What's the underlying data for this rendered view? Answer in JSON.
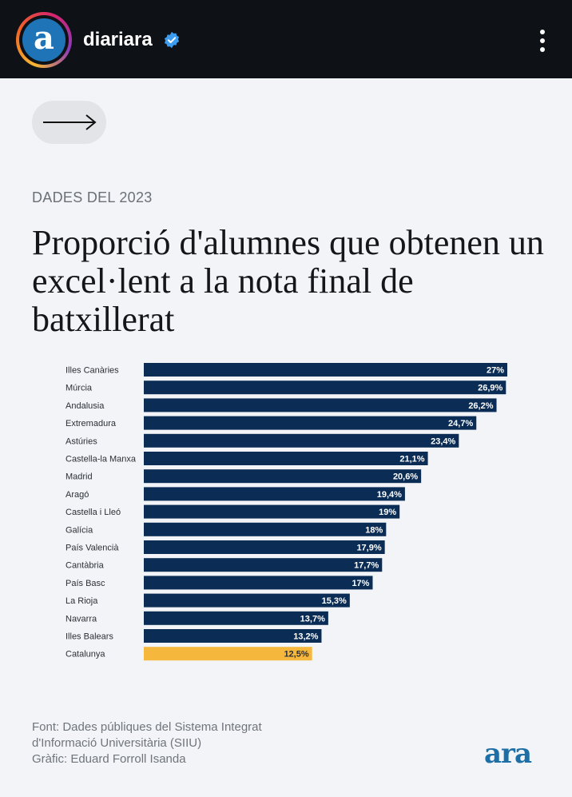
{
  "header": {
    "avatar_letter": "a",
    "username": "diariara",
    "verified_icon": "verified-badge-icon",
    "more_icon": "more-vertical-icon"
  },
  "nav": {
    "arrow_icon": "arrow-right-icon"
  },
  "kicker": "DADES DEL 2023",
  "title": "Proporció d'alumnes que obtenen un excel·lent a la nota final de batxillerat",
  "chart_data": {
    "type": "bar",
    "orientation": "horizontal",
    "categories": [
      "Illes Canàries",
      "Múrcia",
      "Andalusia",
      "Extremadura",
      "Astúries",
      "Castella-la Manxa",
      "Madrid",
      "Aragó",
      "Castella i Lleó",
      "Galícia",
      "País Valencià",
      "Cantàbria",
      "País Basc",
      "La Rioja",
      "Navarra",
      "Illes Balears",
      "Catalunya"
    ],
    "values": [
      27,
      26.9,
      26.2,
      24.7,
      23.4,
      21.1,
      20.6,
      19.4,
      19,
      18,
      17.9,
      17.7,
      17,
      15.3,
      13.7,
      13.2,
      12.5
    ],
    "value_labels": [
      "27%",
      "26,9%",
      "26,2%",
      "24,7%",
      "23,4%",
      "21,1%",
      "20,6%",
      "19,4%",
      "19%",
      "18%",
      "17,9%",
      "17,7%",
      "17%",
      "15,3%",
      "13,7%",
      "13,2%",
      "12,5%"
    ],
    "highlight": "Catalunya",
    "colors": {
      "bar": "#0b2d55",
      "highlight": "#f5b83d",
      "label_on_bar": "#ffffff",
      "label_on_highlight": "#2b2f36"
    },
    "xlim": [
      0,
      27
    ]
  },
  "source": {
    "line1": "Font: Dades públiques del Sistema Integrat",
    "line2": "d'Informació Universitària (SIIU)",
    "line3": "Gràfic: Eduard Forroll Isanda"
  },
  "logo": "ara"
}
